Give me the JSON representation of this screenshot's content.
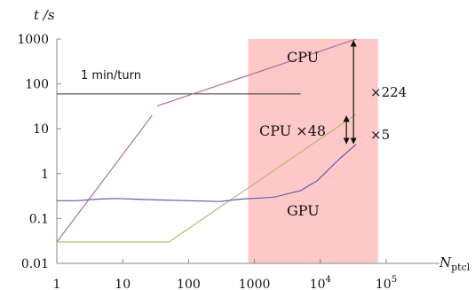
{
  "chart_data": {
    "type": "line",
    "xlabel": "N",
    "xlabel_sub": "ptcl",
    "ylabel": "t /s",
    "xscale": "log",
    "yscale": "log",
    "xlim": [
      1,
      100000
    ],
    "ylim": [
      0.01,
      1000
    ],
    "x_ticks": [
      {
        "value": 1,
        "label": "1"
      },
      {
        "value": 10,
        "label": "10"
      },
      {
        "value": 100,
        "label": "100"
      },
      {
        "value": 1000,
        "label": "1000"
      },
      {
        "value": 10000,
        "label": "10",
        "exp": "4"
      },
      {
        "value": 100000,
        "label": "10",
        "exp": "5"
      }
    ],
    "y_ticks": [
      {
        "value": 0.01,
        "label": "0.01"
      },
      {
        "value": 0.1,
        "label": "0.1"
      },
      {
        "value": 1,
        "label": "1"
      },
      {
        "value": 10,
        "label": "10"
      },
      {
        "value": 100,
        "label": "100"
      },
      {
        "value": 1000,
        "label": "1000"
      }
    ],
    "grid": false,
    "highlight_region": {
      "x": [
        800,
        75000
      ],
      "color": "#ffc8c8"
    },
    "reference_line": {
      "label": "1 min/turn",
      "y": 60,
      "x": [
        1,
        5000
      ],
      "color": "#333333"
    },
    "series": [
      {
        "name": "CPU",
        "color": "#b07098",
        "points": [
          [
            1,
            0.03
          ],
          [
            28,
            20
          ],
          [
            33,
            32
          ],
          [
            35000,
            1000
          ]
        ]
      },
      {
        "name": "CPU ×48",
        "color": "#b8b878",
        "points": [
          [
            1,
            0.03
          ],
          [
            50,
            0.03
          ],
          [
            35000,
            21
          ]
        ]
      },
      {
        "name": "GPU",
        "color": "#6060a8",
        "points": [
          [
            1,
            0.25
          ],
          [
            2,
            0.25
          ],
          [
            4,
            0.27
          ],
          [
            8,
            0.28
          ],
          [
            16,
            0.27
          ],
          [
            32,
            0.26
          ],
          [
            100,
            0.25
          ],
          [
            300,
            0.24
          ],
          [
            600,
            0.27
          ],
          [
            2000,
            0.3
          ],
          [
            5000,
            0.42
          ],
          [
            9000,
            0.7
          ],
          [
            20000,
            2.2
          ],
          [
            35000,
            4.5
          ]
        ]
      }
    ],
    "annotations": [
      {
        "text": "×224",
        "between": [
          4.5,
          1000
        ],
        "x": 35000
      },
      {
        "text": "×5",
        "between": [
          4.5,
          21
        ],
        "x": 35000
      }
    ]
  }
}
